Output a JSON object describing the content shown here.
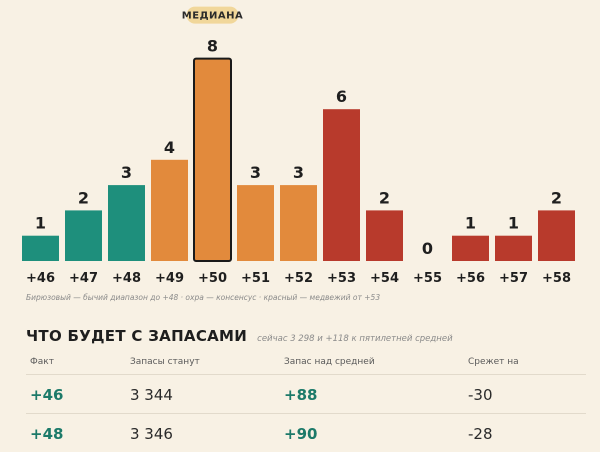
{
  "chart_data": {
    "type": "bar",
    "categories": [
      "+46",
      "+47",
      "+48",
      "+49",
      "+50",
      "+51",
      "+52",
      "+53",
      "+54",
      "+55",
      "+56",
      "+57",
      "+58"
    ],
    "values": [
      1,
      2,
      3,
      4,
      8,
      3,
      3,
      6,
      2,
      0,
      1,
      1,
      2
    ],
    "bar_colors": [
      "#1e8f7c",
      "#1e8f7c",
      "#1e8f7c",
      "#e28a3c",
      "#e28a3c",
      "#e28a3c",
      "#e28a3c",
      "#b83a2c",
      "#b83a2c",
      "#b83a2c",
      "#b83a2c",
      "#b83a2c",
      "#b83a2c"
    ],
    "highlight_category": "+50",
    "median_label": "МЕДИАНА",
    "ylim": [
      0,
      8
    ],
    "title": "",
    "xlabel": "",
    "ylabel": "",
    "grid": false
  },
  "caption": "Бирюзовый — бычий диапазон до +48 · охра — консенсус · красный — медвежий от +53",
  "section": {
    "title": "ЧТО БУДЕТ С ЗАПАСАМИ",
    "subtitle": "сейчас 3 298 и +118 к пятилетней средней"
  },
  "table": {
    "headers": [
      "Факт",
      "Запасы станут",
      "Запас над средней",
      "Срежет на"
    ],
    "rows": [
      [
        "+46",
        "3 344",
        "+88",
        "-30"
      ],
      [
        "+48",
        "3 346",
        "+90",
        "-28"
      ]
    ]
  },
  "colors": {
    "background": "#f8f1e4",
    "teal": "#1e8f7c",
    "ochre": "#e28a3c",
    "red": "#b83a2c",
    "median_badge": "#f1d79a"
  }
}
